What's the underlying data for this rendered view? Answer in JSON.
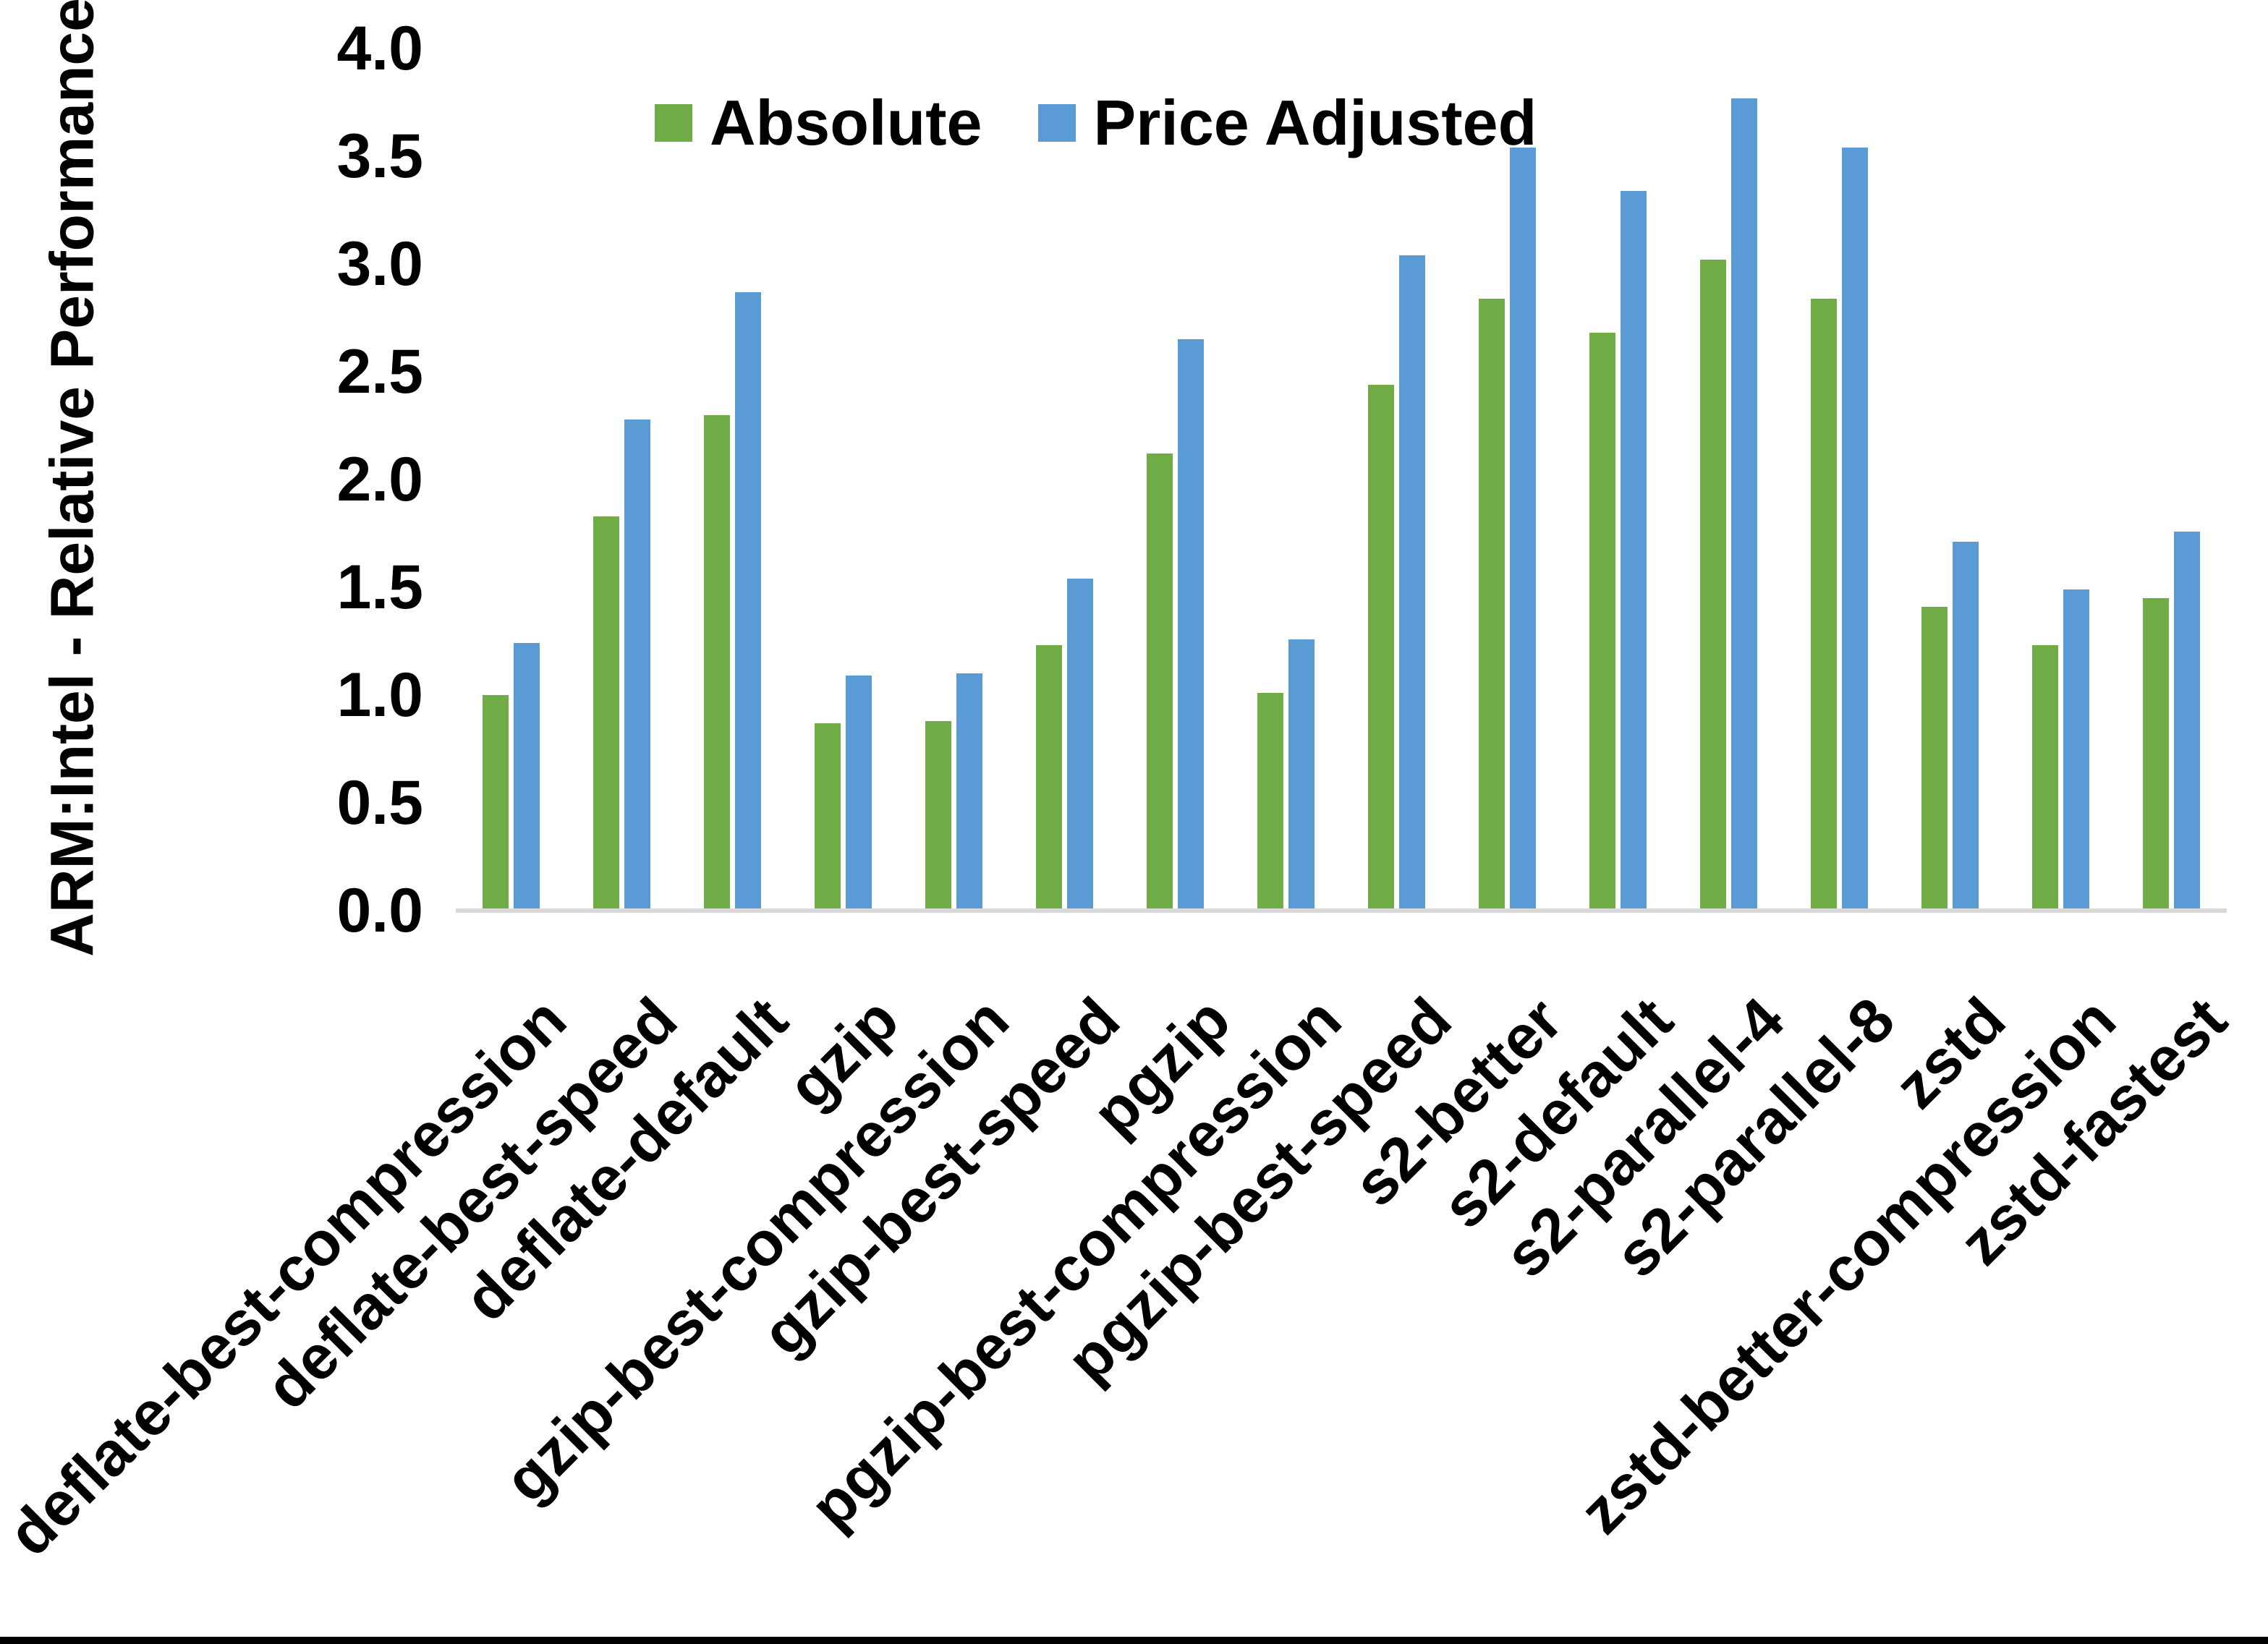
{
  "chart_data": {
    "type": "bar",
    "title": "",
    "ylabel": "ARM:Intel - Relative Performance",
    "xlabel": "",
    "ylim": [
      0.0,
      4.0
    ],
    "ytick_step": 0.5,
    "yticks": [
      "4.0",
      "3.5",
      "3.0",
      "2.5",
      "2.0",
      "1.5",
      "1.0",
      "0.5",
      "0.0"
    ],
    "grid": false,
    "legend_position": "top-center",
    "categories": [
      "deflate-best-compression",
      "deflate-best-speed",
      "deflate-default",
      "gzip",
      "gzip-best-compression",
      "gzip-best-speed",
      "pgzip",
      "pgzip-best-compression",
      "pgzip-best-speed",
      "s2-better",
      "s2-default",
      "s2-parallel-4",
      "s2-parallel-8",
      "zstd",
      "zstd-better-compression",
      "zstd-fastest"
    ],
    "series": [
      {
        "name": "Absolute",
        "color": "#70AD47",
        "values": [
          1.0,
          1.83,
          2.3,
          0.87,
          0.88,
          1.23,
          2.12,
          1.01,
          2.44,
          2.84,
          2.68,
          3.02,
          2.84,
          1.41,
          1.23,
          1.45
        ]
      },
      {
        "name": "Price Adjusted",
        "color": "#5B9BD5",
        "values": [
          1.24,
          2.28,
          2.87,
          1.09,
          1.1,
          1.54,
          2.65,
          1.26,
          3.04,
          3.54,
          3.34,
          3.77,
          3.54,
          1.71,
          1.49,
          1.76
        ]
      }
    ],
    "axis_line_color": "#D9D9D9",
    "text_color": "#000000",
    "page_bottom_border_color": "#000000"
  }
}
